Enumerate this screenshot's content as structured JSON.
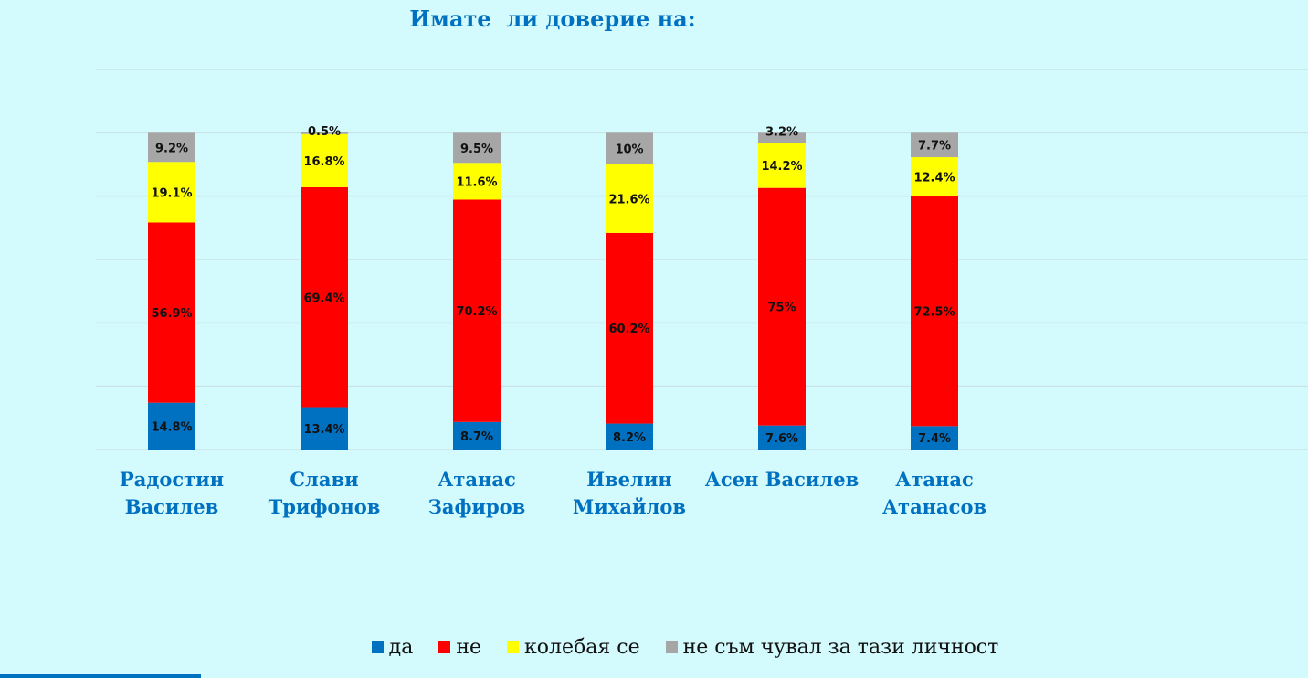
{
  "chart_data": {
    "type": "bar",
    "stacked": true,
    "title": "Имате  ли доверие на:",
    "categories": [
      [
        "Радостин",
        "Василев"
      ],
      [
        "Слави",
        "Трифонов"
      ],
      [
        "Атанас",
        "Зафиров"
      ],
      [
        "Ивелин",
        "Михайлов"
      ],
      [
        "Асен Василев"
      ],
      [
        "Атанас",
        "Атанасов"
      ]
    ],
    "series": [
      {
        "name": "да",
        "color": "#0070c0",
        "values": [
          14.8,
          13.4,
          8.7,
          8.2,
          7.6,
          7.4
        ],
        "labels": [
          "14.8%",
          "13.4%",
          "8.7%",
          "8.2%",
          "7.6%",
          "7.4%"
        ]
      },
      {
        "name": "не",
        "color": "#ff0000",
        "values": [
          56.9,
          69.4,
          70.2,
          60.2,
          75,
          72.5
        ],
        "labels": [
          "56.9%",
          "69.4%",
          "70.2%",
          "60.2%",
          "75%",
          "72.5%"
        ]
      },
      {
        "name": "колебая се",
        "color": "#ffff00",
        "values": [
          19.1,
          16.8,
          11.6,
          21.6,
          14.2,
          12.4
        ],
        "labels": [
          "19.1%",
          "16.8%",
          "11.6%",
          "21.6%",
          "14.2%",
          "12.4%"
        ]
      },
      {
        "name": "не съм чувал за тази личност",
        "color": "#a6a6a6",
        "values": [
          9.2,
          0.5,
          9.5,
          10,
          3.2,
          7.7
        ],
        "labels": [
          "9.2%",
          "0.5%",
          "9.5%",
          "10%",
          "3.2%",
          "7.7%"
        ]
      }
    ],
    "ylim": [
      0,
      120
    ],
    "grid": true,
    "legend": "bottom"
  }
}
